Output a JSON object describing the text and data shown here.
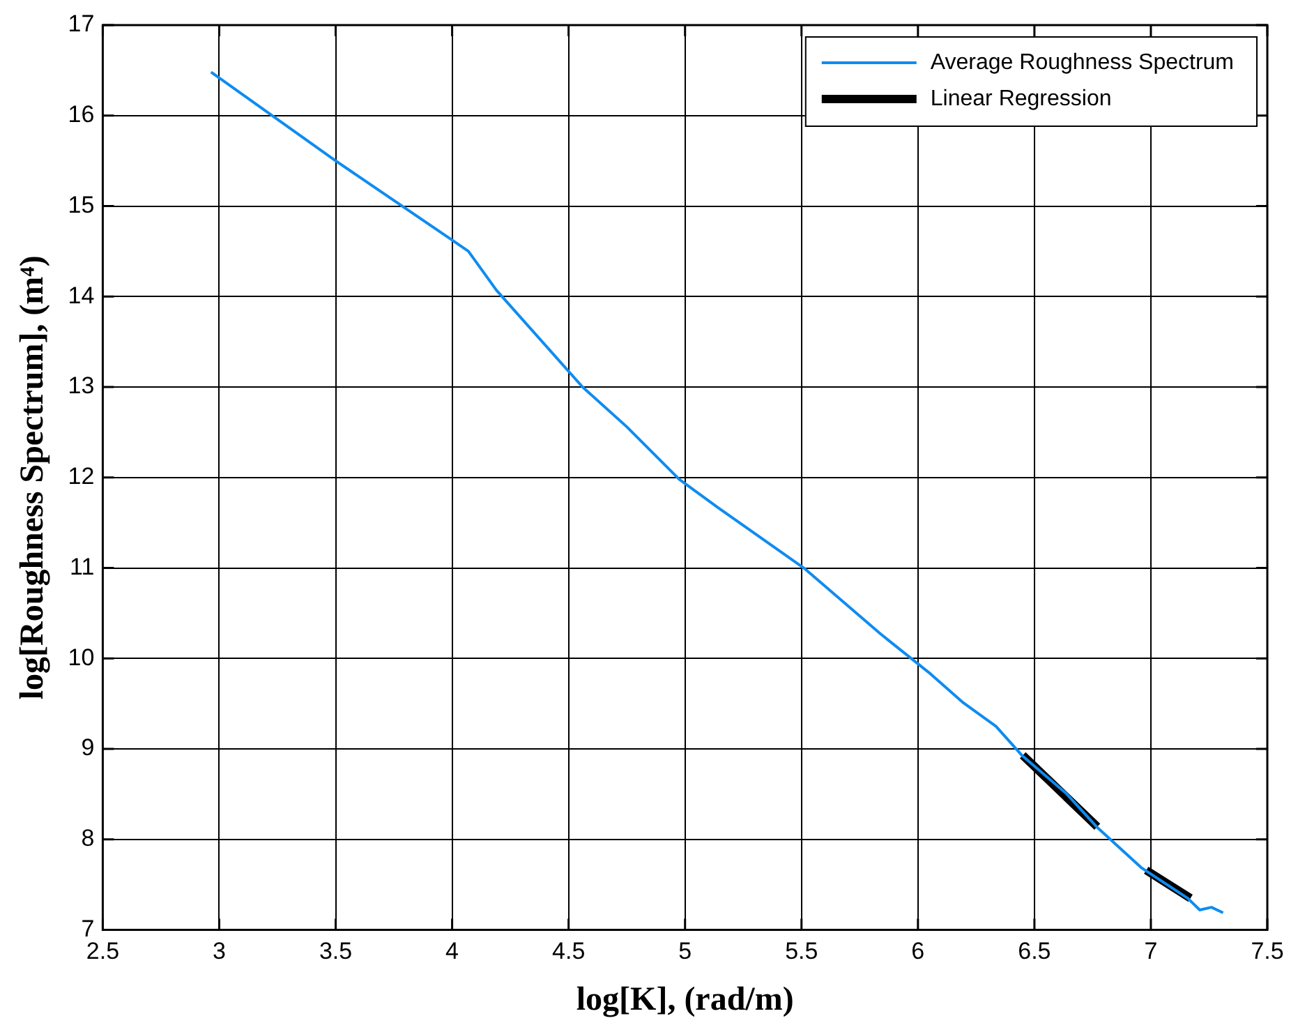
{
  "chart_data": {
    "type": "line",
    "xlabel": "log[K], (rad/m)",
    "ylabel": "log[Roughness Spectrum], (m⁴)",
    "xlim": [
      2.5,
      7.5
    ],
    "xticks": [
      2.5,
      3,
      3.5,
      4,
      4.5,
      5,
      5.5,
      6,
      6.5,
      7,
      7.5
    ],
    "ylim": [
      7,
      17
    ],
    "yticks": [
      7,
      8,
      9,
      10,
      11,
      12,
      13,
      14,
      15,
      16,
      17
    ],
    "grid": true,
    "legend": "top right",
    "series": [
      {
        "name": "Average Roughness Spectrum",
        "color": "#0f8cf0",
        "x": [
          2.965,
          3.5,
          4.008,
          4.07,
          4.19,
          4.56,
          4.75,
          4.975,
          5.14,
          5.51,
          5.84,
          6.054,
          6.195,
          6.335,
          6.446,
          6.636,
          6.767,
          6.958,
          7.158,
          7.21,
          7.26,
          7.31
        ],
        "values": [
          16.48,
          15.5,
          14.61,
          14.5,
          14.07,
          13.0,
          12.56,
          11.98,
          11.67,
          11.0,
          10.27,
          9.83,
          9.51,
          9.25,
          8.93,
          8.51,
          8.14,
          7.69,
          7.35,
          7.22,
          7.25,
          7.19
        ]
      },
      {
        "name": "Linear Regression",
        "color": "#000000",
        "x": [
          6.45,
          6.77,
          6.88,
          6.98,
          7.17
        ],
        "values": [
          8.93,
          8.14,
          null,
          7.66,
          7.35
        ]
      }
    ]
  }
}
